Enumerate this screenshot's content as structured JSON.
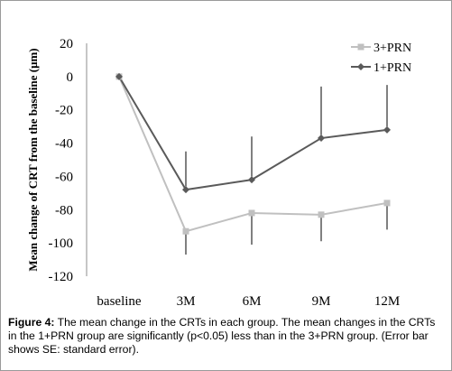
{
  "chart_data": {
    "type": "line",
    "title": "",
    "xlabel": "",
    "ylabel": "Mean change of CRT from the baseline (μm)",
    "categories": [
      "baseline",
      "3M",
      "6M",
      "9M",
      "12M"
    ],
    "ylim": [
      -120,
      20
    ],
    "yticks": [
      "20",
      "0",
      "-20",
      "-40",
      "-60",
      "-80",
      "-100",
      "-120"
    ],
    "ytick_values": [
      20,
      0,
      -20,
      -40,
      -60,
      -80,
      -100,
      -120
    ],
    "grid": false,
    "legend_position": "top-right",
    "series": [
      {
        "name": "3+PRN",
        "color": "#c0c0c0",
        "marker": "square",
        "values": [
          0,
          -93,
          -82,
          -83,
          -76
        ],
        "error_low": [
          0,
          14,
          19,
          16,
          16
        ],
        "error_high": [
          0,
          0,
          0,
          0,
          0
        ]
      },
      {
        "name": "1+PRN",
        "color": "#5a5a5a",
        "marker": "diamond",
        "values": [
          0,
          -68,
          -62,
          -37,
          -32
        ],
        "error_low": [
          0,
          0,
          0,
          0,
          0
        ],
        "error_high": [
          0,
          23,
          26,
          31,
          27
        ]
      }
    ]
  },
  "caption": {
    "label": "Figure 4:",
    "text": " The mean change in the CRTs in each group. The mean changes in the CRTs in the 1+PRN group are significantly (p<0.05) less than in the 3+PRN group. (Error bar shows SE: standard error)."
  }
}
